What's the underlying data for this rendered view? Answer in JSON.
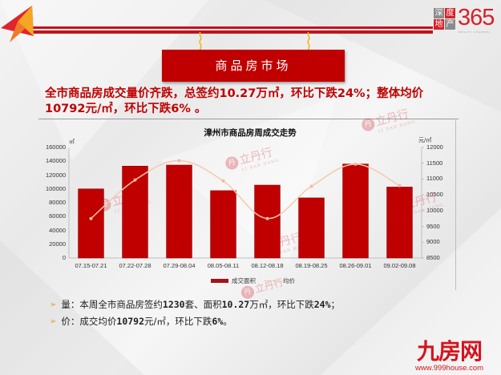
{
  "header": {
    "logo_365": {
      "box_chars": [
        "深",
        "度",
        "地",
        "产"
      ],
      "number": "365",
      "sub": "REALTY CHANNEL"
    },
    "banner_title": "商品房市场"
  },
  "headline": {
    "line1": "全市商品房成交量价齐跌，总签约10.27万㎡，环比下跌24%；整体均价",
    "line2": "10792元/㎡，环比下跌6% 。"
  },
  "watermark": {
    "text": "立丹行",
    "sub": "LI DAN HANG",
    "mark": "丹"
  },
  "chart_data": {
    "type": "bar+line",
    "title": "漳州市商品房周成交走势",
    "categories": [
      "07.15-07.21",
      "07.22-07.28",
      "07.29-08.04",
      "08.05-08.11",
      "08.12-08.18",
      "08.19-08.25",
      "08.26-09.01",
      "09.02-09.08"
    ],
    "series": [
      {
        "name": "成交面积",
        "type": "bar",
        "axis": "left",
        "color": "#c00000",
        "values": [
          100000,
          133000,
          134500,
          97500,
          105500,
          87000,
          136000,
          102700
        ]
      },
      {
        "name": "均价",
        "type": "line",
        "axis": "right",
        "color": "#f5c9b0",
        "smooth": true,
        "values": [
          9750,
          10970,
          11580,
          10940,
          9750,
          10770,
          11470,
          10792
        ]
      }
    ],
    "left_axis": {
      "unit": "㎡",
      "ticks": [
        "160000",
        "140000",
        "120000",
        "100000",
        "80000",
        "60000",
        "40000",
        "20000",
        "0"
      ],
      "range": [
        0,
        160000
      ]
    },
    "right_axis": {
      "unit": "元/㎡",
      "ticks": [
        "12000",
        "11500",
        "11000",
        "10500",
        "10000",
        "9500",
        "9000",
        "8500"
      ],
      "range": [
        8500,
        12000
      ]
    },
    "legend": {
      "position": "bottom",
      "items": [
        "成交面积",
        "均价"
      ]
    },
    "grid": false
  },
  "bullets": [
    {
      "label": "量：本周全市商品房签约",
      "n1": "1230",
      "t1": "套、面积",
      "n2": "10.27",
      "t2": "万㎡，环比下跌",
      "n3": "24%",
      "t3": "；"
    },
    {
      "label": "价：成交均价",
      "n1": "10792",
      "t1": "元/㎡，环比下跌",
      "n2": "6%",
      "t2": "。"
    }
  ],
  "footer_brand": {
    "name": "九房网",
    "url": "www.999house.com"
  }
}
